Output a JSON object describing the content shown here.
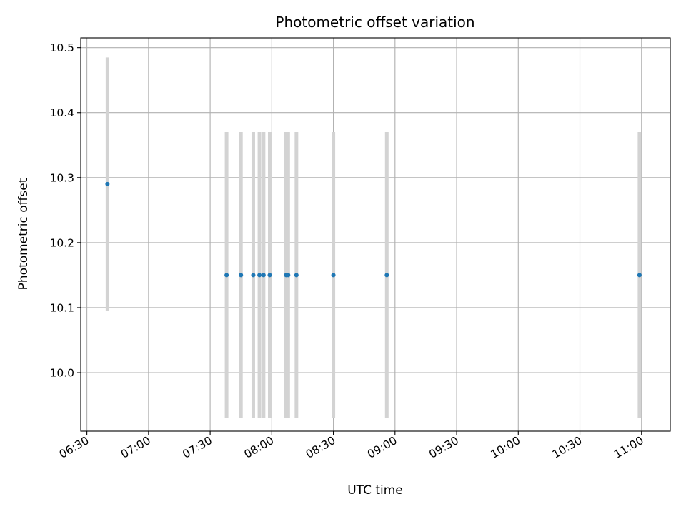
{
  "chart_data": {
    "type": "scatter",
    "title": "Photometric offset variation",
    "xlabel": "UTC time",
    "ylabel": "Photometric offset",
    "x_axis_type": "time",
    "x_ticks": [
      "06:30",
      "07:00",
      "07:30",
      "08:00",
      "08:30",
      "09:00",
      "09:30",
      "10:00",
      "10:30",
      "11:00"
    ],
    "xlim": [
      "06:27",
      "11:14"
    ],
    "y_ticks": [
      10.0,
      10.1,
      10.2,
      10.3,
      10.4,
      10.5
    ],
    "y_tick_labels": [
      "10.0",
      "10.1",
      "10.2",
      "10.3",
      "10.4",
      "10.5"
    ],
    "ylim": [
      9.91,
      10.515
    ],
    "grid": true,
    "marker_color": "#1f77b4",
    "errorbar_color": "#d3d3d3",
    "series": [
      {
        "points": [
          {
            "x": "06:40",
            "y": 10.29,
            "err": 0.195
          },
          {
            "x": "07:38",
            "y": 10.15,
            "err": 0.22
          },
          {
            "x": "07:45",
            "y": 10.15,
            "err": 0.22
          },
          {
            "x": "07:51",
            "y": 10.15,
            "err": 0.22
          },
          {
            "x": "07:54",
            "y": 10.15,
            "err": 0.22
          },
          {
            "x": "07:56",
            "y": 10.15,
            "err": 0.22
          },
          {
            "x": "07:59",
            "y": 10.15,
            "err": 0.22
          },
          {
            "x": "08:07",
            "y": 10.15,
            "err": 0.22
          },
          {
            "x": "08:08",
            "y": 10.15,
            "err": 0.22
          },
          {
            "x": "08:12",
            "y": 10.15,
            "err": 0.22
          },
          {
            "x": "08:30",
            "y": 10.15,
            "err": 0.22
          },
          {
            "x": "08:56",
            "y": 10.15,
            "err": 0.22
          },
          {
            "x": "10:59",
            "y": 10.15,
            "err": 0.22
          }
        ]
      }
    ]
  }
}
